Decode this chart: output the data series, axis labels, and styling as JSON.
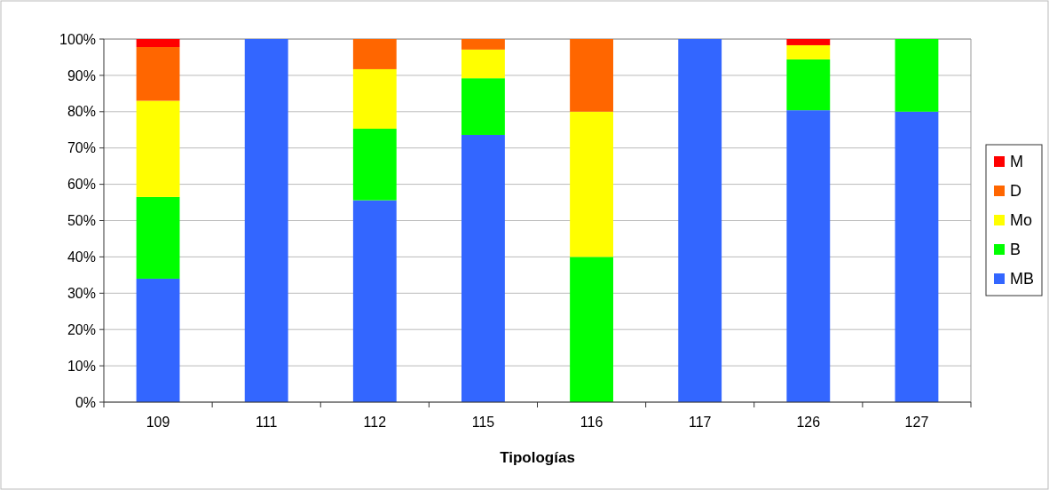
{
  "chart_data": {
    "type": "bar",
    "stacked": true,
    "xlabel": "Tipologías",
    "categories": [
      "109",
      "111",
      "112",
      "115",
      "116",
      "117",
      "126",
      "127"
    ],
    "series": [
      {
        "name": "MB",
        "color": "#3366ff",
        "values": [
          34,
          100,
          55.6,
          73.6,
          0,
          100,
          80.4,
          80
        ]
      },
      {
        "name": "B",
        "color": "#00ff00",
        "values": [
          22.5,
          0,
          19.7,
          15.6,
          40,
          0,
          14,
          20
        ]
      },
      {
        "name": "Mo",
        "color": "#ffff00",
        "values": [
          26.5,
          0,
          16.4,
          7.9,
          40,
          0,
          3.9,
          0
        ]
      },
      {
        "name": "D",
        "color": "#ff6600",
        "values": [
          14.8,
          0,
          8.3,
          2.9,
          20,
          0,
          0,
          0
        ]
      },
      {
        "name": "M",
        "color": "#ff0000",
        "values": [
          2.2,
          0,
          0,
          0,
          0,
          0,
          1.7,
          0
        ]
      }
    ],
    "ylim": [
      0,
      100
    ],
    "yticks": [
      {
        "value": 0,
        "label": "0%"
      },
      {
        "value": 10,
        "label": "10%"
      },
      {
        "value": 20,
        "label": "20%"
      },
      {
        "value": 30,
        "label": "30%"
      },
      {
        "value": 40,
        "label": "40%"
      },
      {
        "value": 50,
        "label": "50%"
      },
      {
        "value": 60,
        "label": "60%"
      },
      {
        "value": 70,
        "label": "70%"
      },
      {
        "value": 80,
        "label": "80%"
      },
      {
        "value": 90,
        "label": "90%"
      },
      {
        "value": 100,
        "label": "100%"
      }
    ],
    "grid": "y",
    "legend": "right"
  }
}
